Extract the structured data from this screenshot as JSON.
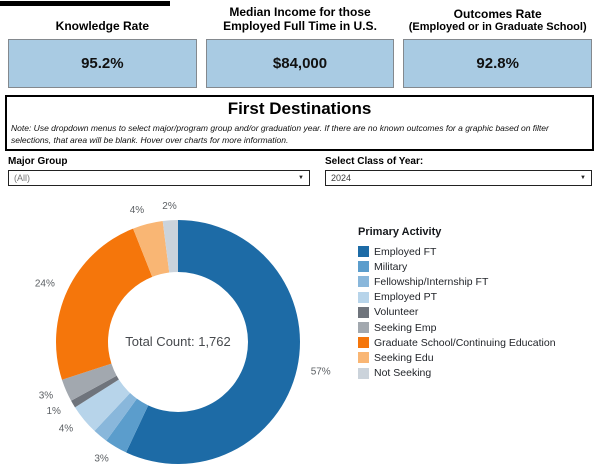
{
  "kpis": [
    {
      "title": "Knowledge Rate",
      "subtitle": "",
      "value": "95.2%"
    },
    {
      "title": "Median Income for those Employed Full Time in U.S.",
      "subtitle": "",
      "value": "$84,000"
    },
    {
      "title": "Outcomes Rate",
      "subtitle": "(Employed or in Graduate School)",
      "value": "92.8%"
    }
  ],
  "banner": {
    "title": "First Destinations",
    "note": "Note: Use dropdown menus to select major/program group and/or graduation year.  If there are no known outcomes for a graphic based on filter selections, that area will be blank.  Hover over charts for more information."
  },
  "filters": [
    {
      "label": "Major Group",
      "value": "(All)"
    },
    {
      "label": "Select Class of Year:",
      "value": "2024"
    }
  ],
  "icons": {
    "caret": "▼"
  },
  "chart_data": {
    "type": "pie",
    "donut": true,
    "title": "Primary Activity",
    "center_label": "Total Count: 1,762",
    "total_count": 1762,
    "legend_position": "right",
    "start_angle_deg": 0,
    "series": [
      {
        "name": "Employed FT",
        "value": 57,
        "label": "57%",
        "color": "#1d6ba6"
      },
      {
        "name": "Military",
        "value": 3,
        "label": "3%",
        "color": "#5b9dcc"
      },
      {
        "name": "Fellowship/Internship FT",
        "value": 2,
        "label": "",
        "color": "#89b7db"
      },
      {
        "name": "Employed PT",
        "value": 4,
        "label": "4%",
        "color": "#b7d4ea"
      },
      {
        "name": "Volunteer",
        "value": 1,
        "label": "1%",
        "color": "#6f747c"
      },
      {
        "name": "Seeking Emp",
        "value": 3,
        "label": "3%",
        "color": "#a2a8af"
      },
      {
        "name": "Graduate School/Continuing Education",
        "value": 24,
        "label": "24%",
        "color": "#f5760b"
      },
      {
        "name": "Seeking Edu",
        "value": 4,
        "label": "4%",
        "color": "#f9b674"
      },
      {
        "name": "Not Seeking",
        "value": 2,
        "label": "2%",
        "color": "#cbd3db"
      }
    ]
  }
}
